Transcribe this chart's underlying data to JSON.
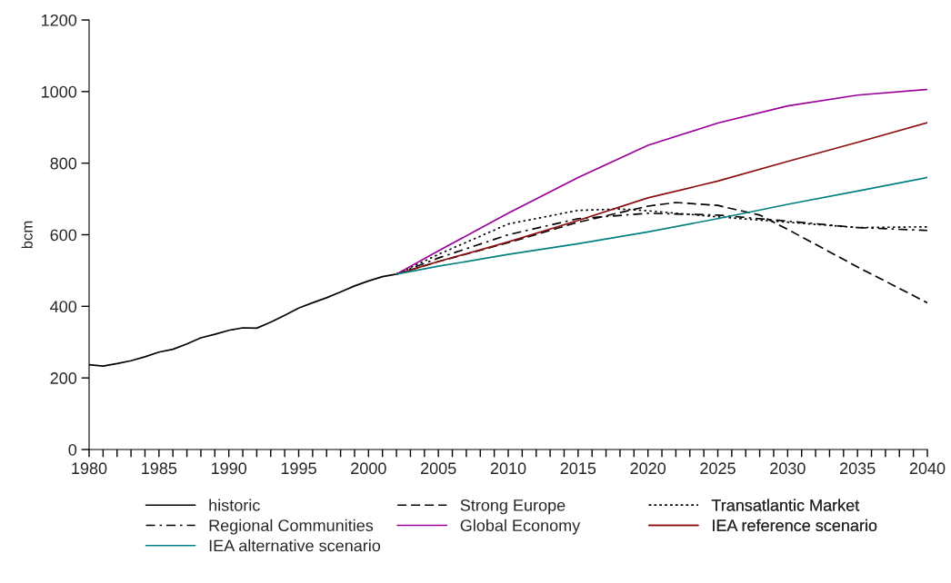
{
  "chart_data": {
    "type": "line",
    "ylabel": "bcm",
    "xlim": [
      1980,
      2040
    ],
    "ylim": [
      0,
      1200
    ],
    "xticks": [
      1980,
      {
        "value": 1981,
        "label": null
      },
      {
        "value": 1982,
        "label": null
      },
      {
        "value": 1983,
        "label": null
      },
      {
        "value": 1984,
        "label": null
      },
      1985,
      {
        "value": 1986,
        "label": null
      },
      {
        "value": 1987,
        "label": null
      },
      {
        "value": 1988,
        "label": null
      },
      {
        "value": 1989,
        "label": null
      },
      1990,
      {
        "value": 1991,
        "label": null
      },
      {
        "value": 1992,
        "label": null
      },
      {
        "value": 1993,
        "label": null
      },
      {
        "value": 1994,
        "label": null
      },
      1995,
      {
        "value": 1996,
        "label": null
      },
      {
        "value": 1997,
        "label": null
      },
      {
        "value": 1998,
        "label": null
      },
      {
        "value": 1999,
        "label": null
      },
      2000,
      {
        "value": 2001,
        "label": null
      },
      {
        "value": 2002,
        "label": null
      },
      {
        "value": 2003,
        "label": null
      },
      {
        "value": 2004,
        "label": null
      },
      2005,
      {
        "value": 2006,
        "label": null
      },
      {
        "value": 2007,
        "label": null
      },
      {
        "value": 2008,
        "label": null
      },
      {
        "value": 2009,
        "label": null
      },
      2010,
      {
        "value": 2011,
        "label": null
      },
      {
        "value": 2012,
        "label": null
      },
      {
        "value": 2013,
        "label": null
      },
      {
        "value": 2014,
        "label": null
      },
      2015,
      {
        "value": 2016,
        "label": null
      },
      {
        "value": 2017,
        "label": null
      },
      {
        "value": 2018,
        "label": null
      },
      {
        "value": 2019,
        "label": null
      },
      2020,
      {
        "value": 2021,
        "label": null
      },
      {
        "value": 2022,
        "label": null
      },
      {
        "value": 2023,
        "label": null
      },
      {
        "value": 2024,
        "label": null
      },
      2025,
      {
        "value": 2026,
        "label": null
      },
      {
        "value": 2027,
        "label": null
      },
      {
        "value": 2028,
        "label": null
      },
      {
        "value": 2029,
        "label": null
      },
      2030,
      {
        "value": 2031,
        "label": null
      },
      {
        "value": 2032,
        "label": null
      },
      {
        "value": 2033,
        "label": null
      },
      {
        "value": 2034,
        "label": null
      },
      2035,
      {
        "value": 2036,
        "label": null
      },
      {
        "value": 2037,
        "label": null
      },
      {
        "value": 2038,
        "label": null
      },
      {
        "value": 2039,
        "label": null
      },
      2040
    ],
    "yticks": [
      0,
      200,
      400,
      600,
      800,
      1000,
      1200
    ],
    "grid": false,
    "legend": "bottom",
    "marker": "none",
    "series": [
      {
        "name": "historic",
        "color": "#000000",
        "line_style": "solid",
        "x": [
          1980,
          1981,
          1982,
          1983,
          1984,
          1985,
          1986,
          1987,
          1988,
          1989,
          1990,
          1991,
          1992,
          1993,
          1994,
          1995,
          1996,
          1997,
          1998,
          1999,
          2000,
          2001,
          2002
        ],
        "values": [
          237,
          233,
          240,
          248,
          259,
          272,
          280,
          295,
          312,
          322,
          333,
          340,
          339,
          356,
          375,
          395,
          410,
          424,
          440,
          457,
          471,
          483,
          490
        ]
      },
      {
        "name": "Strong Europe",
        "color": "#000000",
        "line_style": "dashed",
        "x": [
          2002,
          2005,
          2010,
          2015,
          2020,
          2022,
          2025,
          2028,
          2030,
          2035,
          2040
        ],
        "values": [
          490,
          525,
          578,
          635,
          680,
          690,
          682,
          655,
          615,
          510,
          410
        ]
      },
      {
        "name": "Transatlantic Market",
        "color": "#000000",
        "line_style": "dotted",
        "x": [
          2002,
          2005,
          2010,
          2015,
          2018,
          2020,
          2025,
          2030,
          2035,
          2040
        ],
        "values": [
          490,
          545,
          630,
          668,
          672,
          667,
          650,
          635,
          620,
          622
        ]
      },
      {
        "name": "Regional Communities",
        "color": "#000000",
        "line_style": "dashdot",
        "x": [
          2002,
          2005,
          2010,
          2015,
          2020,
          2025,
          2030,
          2035,
          2040
        ],
        "values": [
          490,
          535,
          600,
          645,
          660,
          655,
          638,
          620,
          612
        ]
      },
      {
        "name": "Global Economy",
        "color": "#990099",
        "line_style": "solid",
        "x": [
          2002,
          2005,
          2010,
          2015,
          2020,
          2025,
          2030,
          2035,
          2040
        ],
        "values": [
          490,
          555,
          660,
          760,
          850,
          912,
          960,
          990,
          1006
        ]
      },
      {
        "name": "IEA reference scenario",
        "color": "#8b0d0d",
        "line_style": "solid",
        "x": [
          2002,
          2005,
          2010,
          2015,
          2020,
          2025,
          2030,
          2035,
          2040
        ],
        "values": [
          490,
          525,
          580,
          640,
          703,
          750,
          805,
          858,
          913
        ]
      },
      {
        "name": "IEA alternative scenario",
        "color": "#008080",
        "line_style": "solid",
        "x": [
          2002,
          2005,
          2010,
          2015,
          2020,
          2025,
          2030,
          2035,
          2040
        ],
        "values": [
          490,
          512,
          545,
          575,
          608,
          645,
          685,
          722,
          760
        ]
      }
    ]
  }
}
